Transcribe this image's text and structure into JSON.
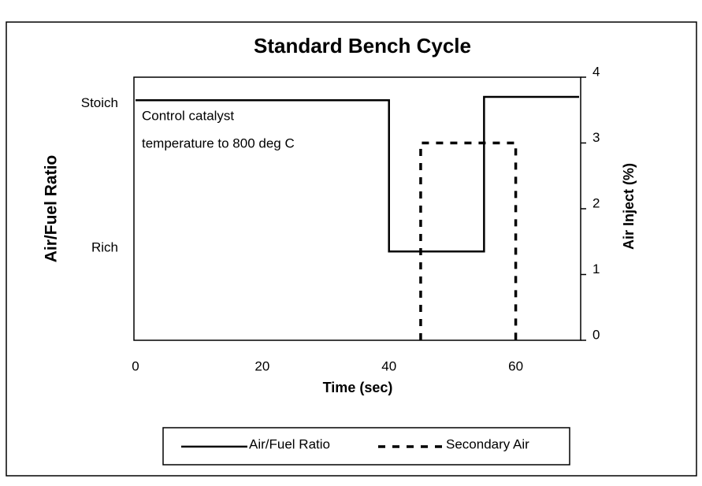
{
  "chart_data": {
    "type": "line",
    "title": "Standard Bench Cycle",
    "xlabel": "Time (sec)",
    "ylabel": "Air/Fuel Ratio",
    "y2label": "Air Inject (%)",
    "annotation": [
      "Control catalyst",
      "temperature to 800 deg C"
    ],
    "xlim": [
      0,
      70
    ],
    "xticks": [
      0,
      20,
      40,
      60
    ],
    "ylim": [
      0,
      4
    ],
    "yticks": [
      {
        "value": 3.6,
        "label": "Stoich"
      },
      {
        "value": 1.4,
        "label": "Rich"
      }
    ],
    "y2lim": [
      0,
      4
    ],
    "y2ticks": [
      0,
      1,
      2,
      3,
      4
    ],
    "legend": "bottom",
    "series": [
      {
        "name": "Air/Fuel Ratio",
        "color": "#000000",
        "dash": "solid",
        "x": [
          0,
          40,
          40,
          55,
          55,
          70
        ],
        "values": [
          3.65,
          3.65,
          1.35,
          1.35,
          3.7,
          3.7
        ]
      },
      {
        "name": "Secondary Air",
        "color": "#000000",
        "dash": "dashed",
        "axis": "y2",
        "x": [
          45,
          45,
          60,
          60
        ],
        "values": [
          0,
          3,
          3,
          0
        ]
      }
    ]
  }
}
